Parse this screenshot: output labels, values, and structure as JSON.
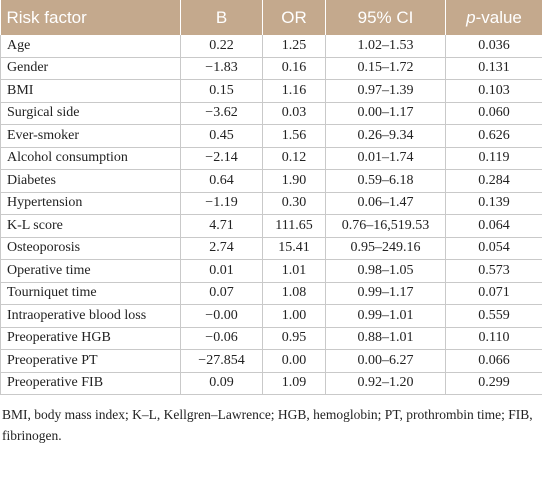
{
  "table": {
    "header": [
      "Risk factor",
      "B",
      "OR",
      "95% CI",
      "p-value"
    ],
    "rows": [
      [
        "Age",
        "0.22",
        "1.25",
        "1.02–1.53",
        "0.036"
      ],
      [
        "Gender",
        "−1.83",
        "0.16",
        "0.15–1.72",
        "0.131"
      ],
      [
        "BMI",
        "0.15",
        "1.16",
        "0.97–1.39",
        "0.103"
      ],
      [
        "Surgical side",
        "−3.62",
        "0.03",
        "0.00–1.17",
        "0.060"
      ],
      [
        "Ever-smoker",
        "0.45",
        "1.56",
        "0.26–9.34",
        "0.626"
      ],
      [
        "Alcohol consumption",
        "−2.14",
        "0.12",
        "0.01–1.74",
        "0.119"
      ],
      [
        "Diabetes",
        "0.64",
        "1.90",
        "0.59–6.18",
        "0.284"
      ],
      [
        "Hypertension",
        "−1.19",
        "0.30",
        "0.06–1.47",
        "0.139"
      ],
      [
        "K-L score",
        "4.71",
        "111.65",
        "0.76–16,519.53",
        "0.064"
      ],
      [
        "Osteoporosis",
        "2.74",
        "15.41",
        "0.95–249.16",
        "0.054"
      ],
      [
        "Operative time",
        "0.01",
        "1.01",
        "0.98–1.05",
        "0.573"
      ],
      [
        "Tourniquet time",
        "0.07",
        "1.08",
        "0.99–1.17",
        "0.071"
      ],
      [
        "Intraoperative blood loss",
        "−0.00",
        "1.00",
        "0.99–1.01",
        "0.559"
      ],
      [
        "Preoperative HGB",
        "−0.06",
        "0.95",
        "0.88–1.01",
        "0.110"
      ],
      [
        "Preoperative PT",
        "−27.854",
        "0.00",
        "0.00–6.27",
        "0.066"
      ],
      [
        "Preoperative FIB",
        "0.09",
        "1.09",
        "0.92–1.20",
        "0.299"
      ]
    ]
  },
  "footnote": "BMI, body mass index; K–L, Kellgren–Lawrence; HGB, hemoglobin; PT, prothrombin time; FIB, fibrinogen."
}
